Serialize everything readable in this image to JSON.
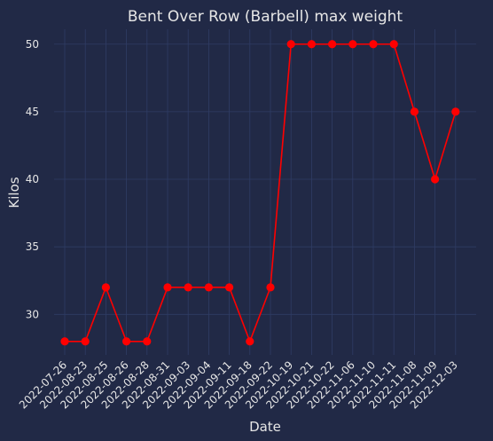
{
  "chart_data": {
    "type": "line",
    "title": "Bent Over Row (Barbell) max weight",
    "xlabel": "Date",
    "ylabel": "Kilos",
    "categories": [
      "2022-07-26",
      "2022-08-23",
      "2022-08-25",
      "2022-08-26",
      "2022-08-28",
      "2022-08-31",
      "2022-09-03",
      "2022-09-04",
      "2022-09-11",
      "2022-09-18",
      "2022-09-22",
      "2022-10-19",
      "2022-10-21",
      "2022-10-22",
      "2022-11-06",
      "2022-11-10",
      "2022-11-11",
      "2022-11-08",
      "2022-11-09",
      "2022-12-03"
    ],
    "series": [
      {
        "values": [
          28,
          28,
          32,
          28,
          28,
          32,
          32,
          32,
          32,
          28,
          32,
          50,
          50,
          50,
          50,
          50,
          50,
          45,
          40,
          45
        ],
        "color": "#ff0000"
      }
    ],
    "yticks": [
      30,
      35,
      40,
      45,
      50
    ],
    "ylim": [
      27.0,
      51.1
    ],
    "grid": true,
    "colors": {
      "background": "#212946",
      "grid": "#2f3c64",
      "text": "#e6e6e6",
      "series": "#ff0000"
    }
  }
}
